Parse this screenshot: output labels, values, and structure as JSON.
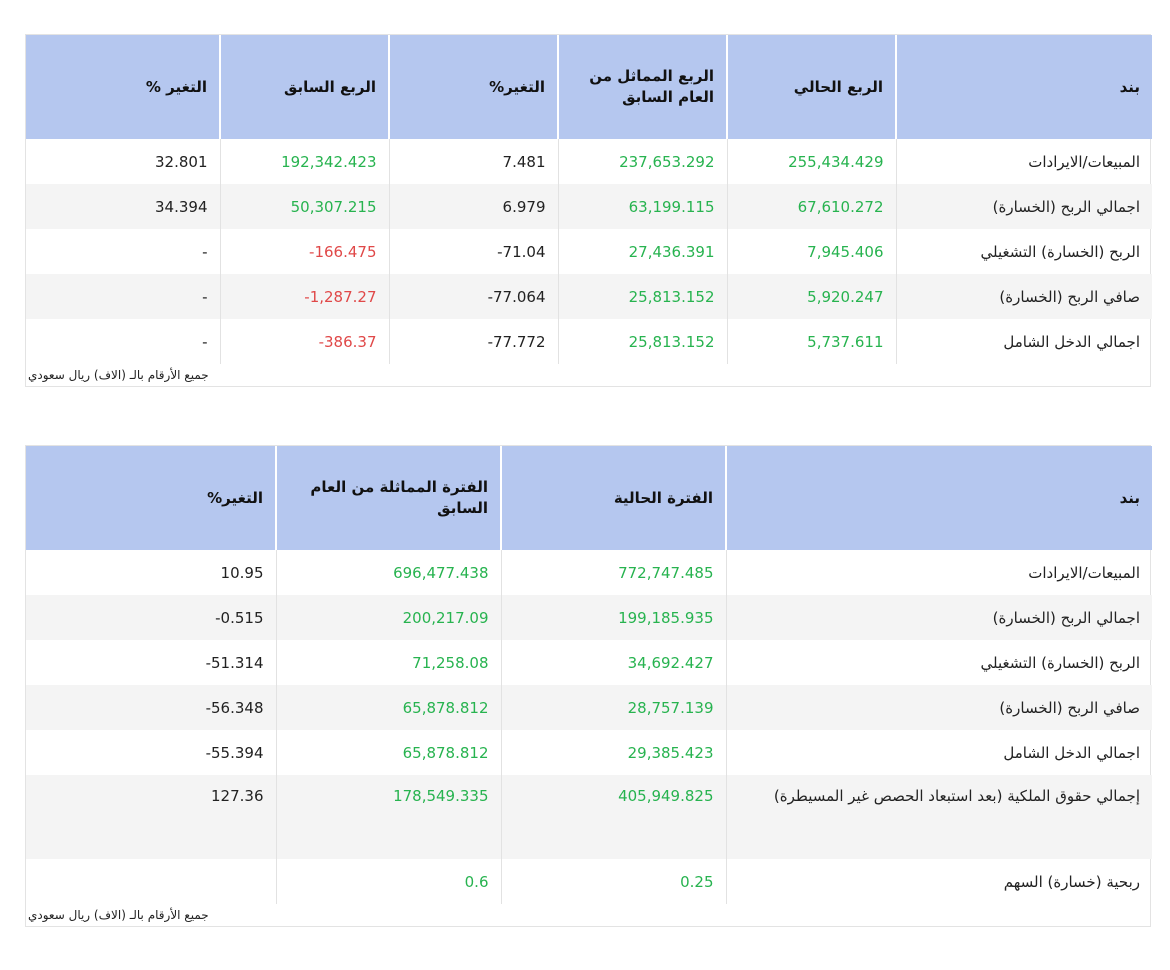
{
  "table1": {
    "headers": [
      "بند",
      "الربع الحالي",
      "الربع المماثل من العام السابق",
      "التغير%",
      "الربع السابق",
      "التغير %"
    ],
    "rows": [
      {
        "label": "المبيعات/الايرادات",
        "current": "255,434.429",
        "same_prev": "237,653.292",
        "change1": "7.481",
        "prev_q": "192,342.423",
        "change2": "32.801"
      },
      {
        "label": "اجمالي الربح (الخسارة)",
        "current": "67,610.272",
        "same_prev": "63,199.115",
        "change1": "6.979",
        "prev_q": "50,307.215",
        "change2": "34.394"
      },
      {
        "label": "الربح (الخسارة) التشغيلي",
        "current": "7,945.406",
        "same_prev": "27,436.391",
        "change1": "71.04-",
        "prev_q": "166.475-",
        "change2": "-"
      },
      {
        "label": "صافي الربح (الخسارة)",
        "current": "5,920.247",
        "same_prev": "25,813.152",
        "change1": "77.064-",
        "prev_q": "1,287.27-",
        "change2": "-"
      },
      {
        "label": "اجمالي الدخل الشامل",
        "current": "5,737.611",
        "same_prev": "25,813.152",
        "change1": "77.772-",
        "prev_q": "386.37-",
        "change2": "-"
      }
    ],
    "note": "جميع الأرقام بالـ (الاف) ريال سعودي"
  },
  "table2": {
    "headers": [
      "بند",
      "الفترة الحالية",
      "الفترة المماثلة من العام السابق",
      "التغير%"
    ],
    "rows": [
      {
        "label": "المبيعات/الايرادات",
        "current": "772,747.485",
        "same_prev": "696,477.438",
        "change": "10.95"
      },
      {
        "label": "اجمالي الربح (الخسارة)",
        "current": "199,185.935",
        "same_prev": "200,217.09",
        "change": "0.515-"
      },
      {
        "label": "الربح (الخسارة) التشغيلي",
        "current": "34,692.427",
        "same_prev": "71,258.08",
        "change": "51.314-"
      },
      {
        "label": "صافي الربح (الخسارة)",
        "current": "28,757.139",
        "same_prev": "65,878.812",
        "change": "56.348-"
      },
      {
        "label": "اجمالي الدخل الشامل",
        "current": "29,385.423",
        "same_prev": "65,878.812",
        "change": "55.394-"
      },
      {
        "label": "إجمالي حقوق الملكية (بعد استبعاد الحصص غير المسيطرة)",
        "current": "405,949.825",
        "same_prev": "178,549.335",
        "change": "127.36"
      },
      {
        "label": "ربحية (خسارة) السهم",
        "current": "0.25",
        "same_prev": "0.6",
        "change": ""
      }
    ],
    "note": "جميع الأرقام بالـ (الاف) ريال سعودي"
  },
  "colors": {
    "header_bg": "#b5c7ef",
    "positive": "#27b34f",
    "negative": "#e04848",
    "stripe": "#f4f4f4"
  }
}
